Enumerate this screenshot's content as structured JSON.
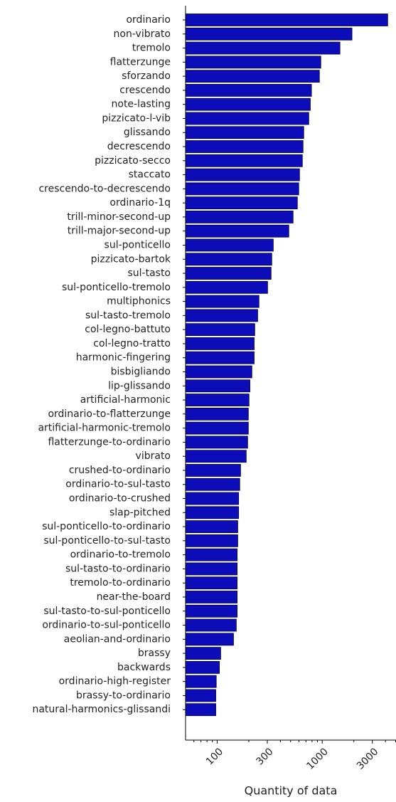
{
  "chart_data": {
    "type": "barh",
    "xlabel": "Quantity of data",
    "categories": [
      "ordinario",
      "non-vibrato",
      "tremolo",
      "flatterzunge",
      "sforzando",
      "crescendo",
      "note-lasting",
      "pizzicato-l-vib",
      "glissando",
      "decrescendo",
      "pizzicato-secco",
      "staccato",
      "crescendo-to-decrescendo",
      "ordinario-1q",
      "trill-minor-second-up",
      "trill-major-second-up",
      "sul-ponticello",
      "pizzicato-bartok",
      "sul-tasto",
      "sul-ponticello-tremolo",
      "multiphonics",
      "sul-tasto-tremolo",
      "col-legno-battuto",
      "col-legno-tratto",
      "harmonic-fingering",
      "bisbigliando",
      "lip-glissando",
      "artificial-harmonic",
      "ordinario-to-flatterzunge",
      "artificial-harmonic-tremolo",
      "flatterzunge-to-ordinario",
      "vibrato",
      "crushed-to-ordinario",
      "ordinario-to-sul-tasto",
      "ordinario-to-crushed",
      "slap-pitched",
      "sul-ponticello-to-ordinario",
      "sul-ponticello-to-sul-tasto",
      "ordinario-to-tremolo",
      "sul-tasto-to-ordinario",
      "tremolo-to-ordinario",
      "near-the-board",
      "sul-tasto-to-sul-ponticello",
      "ordinario-to-sul-ponticello",
      "aeolian-and-ordinario",
      "brassy",
      "backwards",
      "ordinario-high-register",
      "brassy-to-ordinario",
      "natural-harmonics-glissandi"
    ],
    "values": [
      4200,
      1920,
      1475,
      970,
      940,
      790,
      770,
      745,
      667,
      657,
      647,
      608,
      598,
      580,
      528,
      481,
      342,
      331,
      326,
      302,
      250,
      243,
      228,
      225,
      225,
      214,
      205,
      201,
      198,
      198,
      195,
      189,
      167,
      164,
      160,
      160,
      157,
      157,
      155,
      155,
      155,
      155,
      155,
      152,
      143,
      108,
      105,
      98,
      97,
      97
    ],
    "color": "#0c0cb8",
    "xscale": "log",
    "xlim": [
      50,
      5000
    ],
    "xticks": [
      100,
      300,
      1000,
      3000
    ],
    "xticks_minor": [
      60,
      70,
      80,
      90,
      200,
      400,
      500,
      600,
      700,
      800,
      900,
      2000,
      4000,
      5000
    ]
  }
}
